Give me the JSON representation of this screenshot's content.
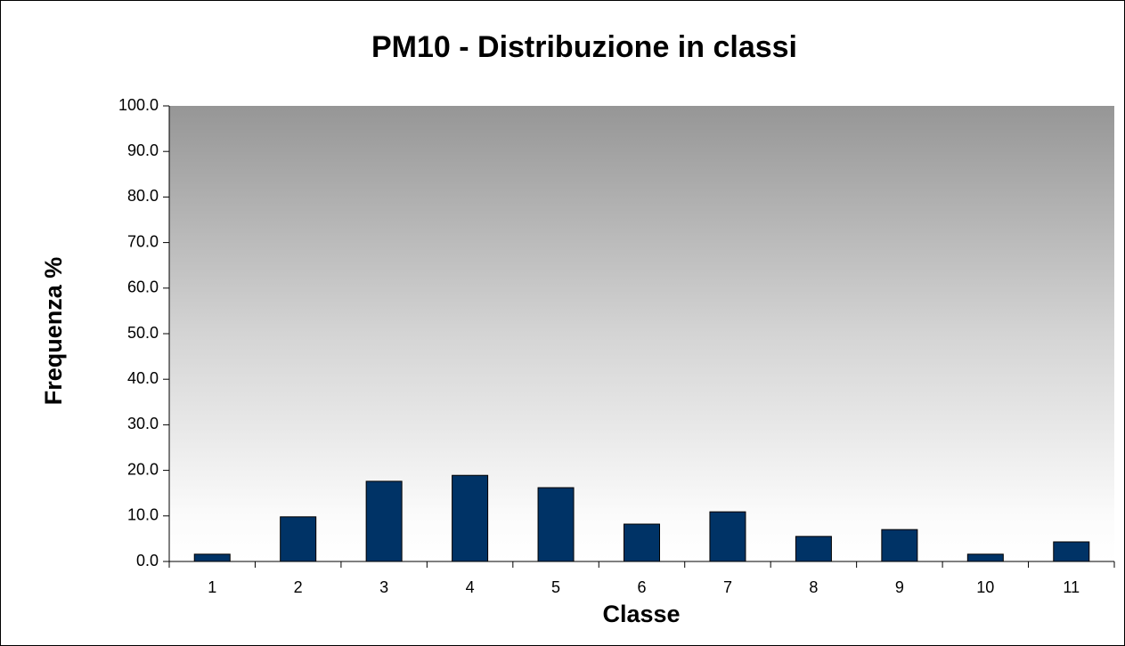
{
  "chart_data": {
    "type": "bar",
    "title": "PM10 - Distribuzione in classi",
    "x_label": "Classe",
    "y_label": "Frequenza %",
    "categories": [
      "1",
      "2",
      "3",
      "4",
      "5",
      "6",
      "7",
      "8",
      "9",
      "10",
      "11"
    ],
    "values": [
      1.6,
      9.8,
      17.6,
      18.9,
      16.2,
      8.2,
      10.9,
      5.5,
      7.0,
      1.6,
      4.3
    ],
    "color": "#003366",
    "ylim": [
      0,
      100
    ],
    "yticks": [
      {
        "value": 0,
        "label": "0.0"
      },
      {
        "value": 10,
        "label": "10.0"
      },
      {
        "value": 20,
        "label": "20.0"
      },
      {
        "value": 30,
        "label": "30.0"
      },
      {
        "value": 40,
        "label": "40.0"
      },
      {
        "value": 50,
        "label": "50.0"
      },
      {
        "value": 60,
        "label": "60.0"
      },
      {
        "value": 70,
        "label": "70.0"
      },
      {
        "value": 80,
        "label": "80.0"
      },
      {
        "value": 90,
        "label": "90.0"
      },
      {
        "value": 100,
        "label": "100.0"
      }
    ]
  }
}
